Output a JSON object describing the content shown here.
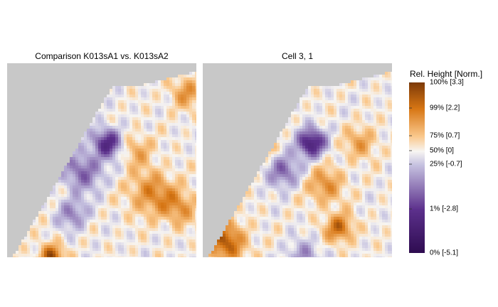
{
  "chart_data": {
    "type": "heatmap",
    "panels": [
      {
        "title": "Comparison K013sA1 vs. K013sA2"
      },
      {
        "title": "Cell 3, 1"
      }
    ],
    "colorbar": {
      "title": "Rel. Height [Norm.]",
      "colors": {
        "low": "#2d0b4f",
        "mid": "#f7f5f2",
        "high": "#7f3b08",
        "mask": "#c8c8c8"
      },
      "ticks": [
        {
          "label": "100% [3.3]",
          "value": 3.3
        },
        {
          "label": "99% [2.2]",
          "value": 2.2
        },
        {
          "label": "75% [0.7]",
          "value": 0.7
        },
        {
          "label": "50% [0]",
          "value": 0
        },
        {
          "label": "25% [-0.7]",
          "value": -0.7
        },
        {
          "label": "1% [-2.8]",
          "value": -2.8
        },
        {
          "label": "0% [-5.1]",
          "value": -5.1
        }
      ]
    }
  }
}
